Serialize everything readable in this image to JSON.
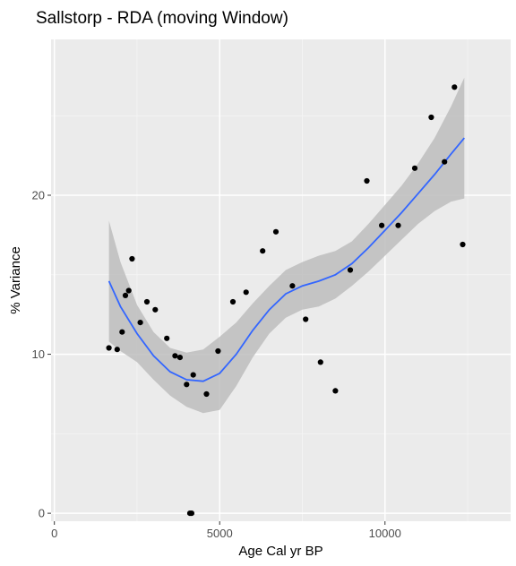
{
  "chart_data": {
    "type": "scatter",
    "title": "Sallstorp - RDA (moving Window)",
    "xlabel": "Age Cal yr BP",
    "ylabel": "% Variance",
    "xlim": [
      -100,
      13800
    ],
    "ylim": [
      -0.5,
      29.8
    ],
    "xticks": [
      0,
      5000,
      10000
    ],
    "yticks": [
      0,
      10,
      20
    ],
    "grid": true,
    "background": "#ebebeb",
    "colors": {
      "points": "#000000",
      "smooth_line": "#3366ff",
      "ribbon": "#bdbdbd"
    },
    "points": {
      "x": [
        1650,
        1900,
        2050,
        2150,
        2250,
        2350,
        2600,
        2800,
        3050,
        3400,
        3650,
        3800,
        4000,
        4100,
        4150,
        4200,
        4600,
        4950,
        5400,
        5800,
        6300,
        6700,
        7200,
        7600,
        8050,
        8500,
        8950,
        9450,
        9900,
        10400,
        10900,
        11400,
        11800,
        12100,
        12350
      ],
      "y": [
        10.4,
        10.3,
        11.4,
        13.7,
        14.0,
        16.0,
        12.0,
        13.3,
        12.8,
        11.0,
        9.9,
        9.8,
        8.1,
        0.0,
        0.0,
        8.7,
        7.5,
        10.2,
        13.3,
        13.9,
        16.5,
        17.7,
        14.3,
        12.2,
        9.5,
        7.7,
        15.3,
        20.9,
        18.1,
        18.1,
        21.7,
        24.9,
        22.1,
        26.8,
        16.9
      ]
    },
    "smooth": {
      "x": [
        1650,
        2000,
        2500,
        3000,
        3500,
        4000,
        4500,
        5000,
        5500,
        6000,
        6500,
        7000,
        7500,
        8000,
        8500,
        9000,
        9500,
        10000,
        10500,
        11000,
        11500,
        12000,
        12400
      ],
      "y": [
        14.6,
        13.0,
        11.3,
        9.9,
        8.9,
        8.4,
        8.3,
        8.8,
        10.0,
        11.5,
        12.8,
        13.8,
        14.3,
        14.6,
        15.0,
        15.7,
        16.7,
        17.8,
        18.9,
        20.1,
        21.3,
        22.6,
        23.6
      ],
      "lower": [
        10.8,
        10.2,
        9.5,
        8.4,
        7.4,
        6.7,
        6.3,
        6.5,
        8.0,
        9.8,
        11.3,
        12.3,
        12.8,
        13.0,
        13.5,
        14.3,
        15.2,
        16.2,
        17.2,
        18.2,
        19.0,
        19.6,
        19.8
      ],
      "upper": [
        18.4,
        15.8,
        13.1,
        11.4,
        10.4,
        10.1,
        10.3,
        11.1,
        12.0,
        13.2,
        14.3,
        15.3,
        15.8,
        16.2,
        16.5,
        17.1,
        18.2,
        19.4,
        20.6,
        22.0,
        23.6,
        25.6,
        27.4
      ]
    }
  }
}
